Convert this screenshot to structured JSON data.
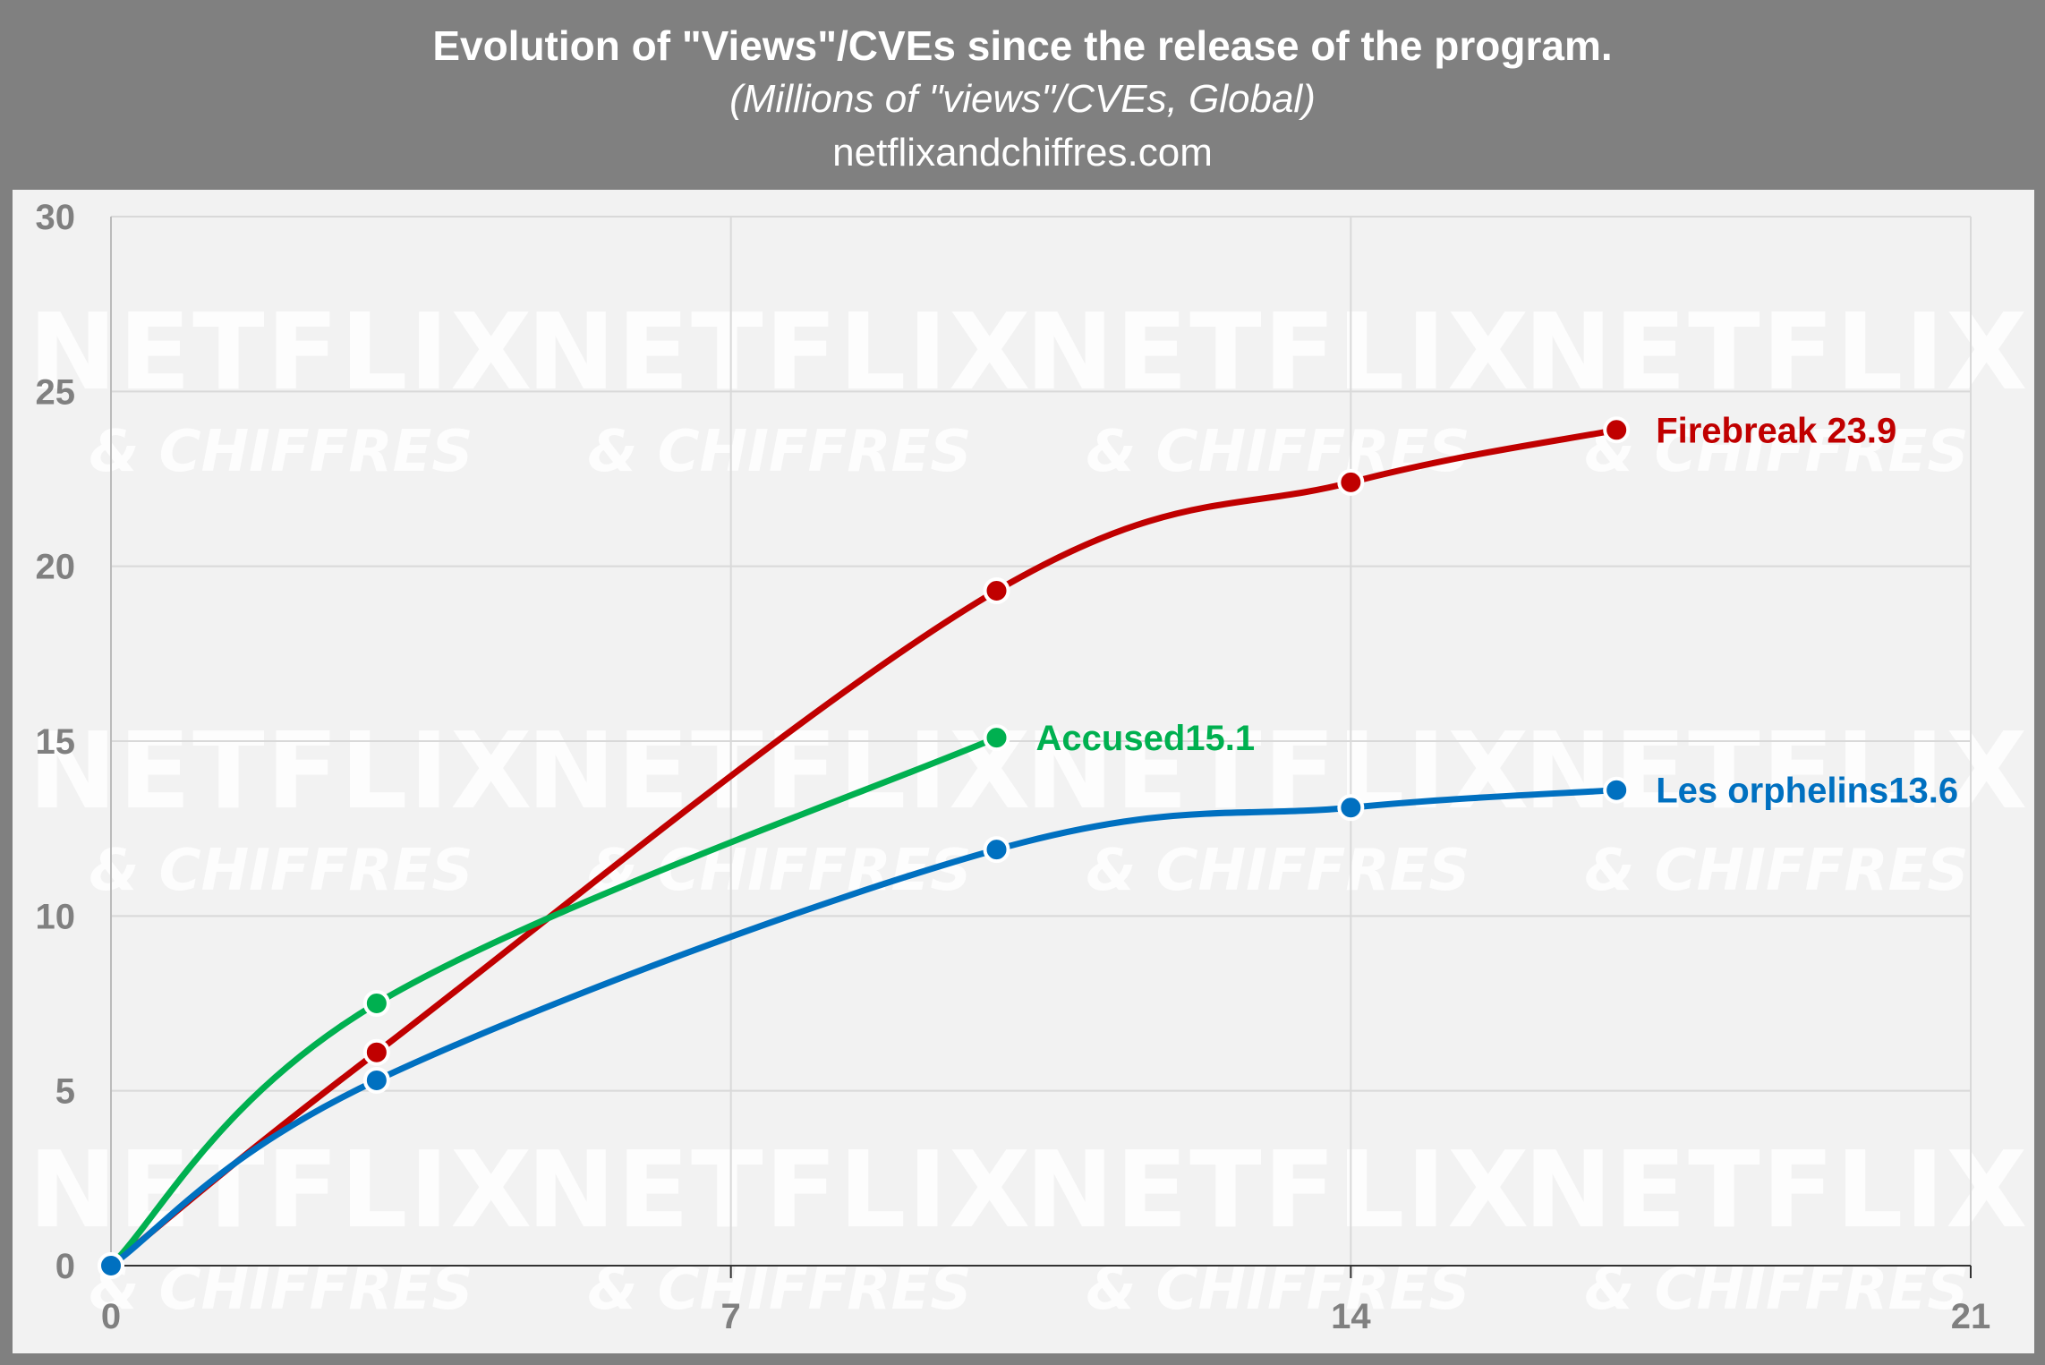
{
  "header": {
    "title": "Evolution of \"Views\"/CVEs since the release of the program.",
    "subtitle": "(Millions of \"views\"/CVEs, Global)",
    "source": "netflixandchiffres.com"
  },
  "watermark": {
    "line1": "NETFLIX",
    "line2": "& CHIFFRES"
  },
  "chart_data": {
    "type": "line",
    "title": "Evolution of \"Views\"/CVEs since the release of the program.",
    "subtitle": "(Millions of \"views\"/CVEs, Global)",
    "xlabel": "",
    "ylabel": "",
    "xlim": [
      0,
      21
    ],
    "ylim": [
      0,
      30
    ],
    "xticks": [
      0,
      7,
      14,
      21
    ],
    "yticks": [
      0,
      5,
      10,
      15,
      20,
      25,
      30
    ],
    "grid": true,
    "legend": "end-of-line labels",
    "series": [
      {
        "name": "Firebreak",
        "end_label": "Firebreak 23.9",
        "color": "#c00000",
        "points": [
          [
            0,
            0
          ],
          [
            3,
            6.1
          ],
          [
            10,
            19.3
          ],
          [
            14,
            22.4
          ],
          [
            17,
            23.9
          ]
        ]
      },
      {
        "name": "Accused",
        "end_label": "Accused15.1",
        "color": "#00b050",
        "points": [
          [
            0,
            0
          ],
          [
            3,
            7.5
          ],
          [
            10,
            15.1
          ]
        ]
      },
      {
        "name": "Les orphelins",
        "end_label": "Les orphelins13.6",
        "color": "#0070c0",
        "points": [
          [
            0,
            0
          ],
          [
            3,
            5.3
          ],
          [
            10,
            11.9
          ],
          [
            14,
            13.1
          ],
          [
            17,
            13.6
          ]
        ]
      }
    ]
  },
  "colors": {
    "background": "#808080",
    "plot": "#f2f2f2",
    "grid": "#d9d9d9",
    "axis_text": "#808080"
  }
}
